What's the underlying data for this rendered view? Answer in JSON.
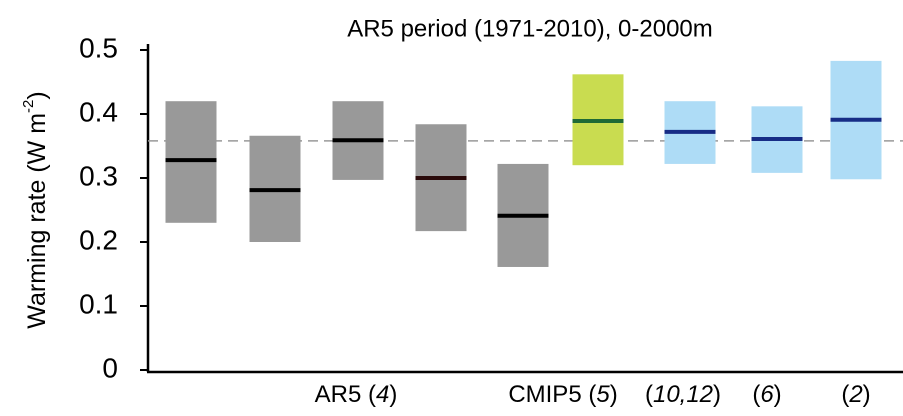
{
  "chart_data": {
    "type": "range",
    "title": "AR5 period (1971-2010), 0-2000m",
    "y_label": [
      "Warming rate (W m",
      "-2",
      ")"
    ],
    "ylim": [
      0,
      0.5
    ],
    "yticks": [
      0,
      0.1,
      0.2,
      0.3,
      0.4,
      0.5
    ],
    "reference_line": 0.358,
    "low": [
      0.23,
      0.2,
      0.297,
      0.217,
      0.161,
      0.32,
      0.322,
      0.308,
      0.298
    ],
    "high": [
      0.42,
      0.366,
      0.42,
      0.384,
      0.322,
      0.462,
      0.42,
      0.412,
      0.483
    ],
    "median": [
      0.328,
      0.281,
      0.359,
      0.3,
      0.241,
      0.389,
      0.372,
      0.361,
      0.391
    ],
    "box_colors": [
      "#999999",
      "#999999",
      "#999999",
      "#999999",
      "#999999",
      "#c9dc50",
      "#aedcf6",
      "#aedcf6",
      "#aedcf6"
    ],
    "median_colors": [
      "#000000",
      "#000000",
      "#000000",
      "#2a0b0b",
      "#000000",
      "#1f6a35",
      "#172d86",
      "#172d86",
      "#172d86"
    ],
    "x_labels": [
      [
        "AR5 (",
        "4",
        ")"
      ],
      [
        "CMIP5 (",
        "5",
        ")"
      ],
      [
        "(",
        "10,12",
        ")"
      ],
      [
        "(",
        "6",
        ")"
      ],
      [
        "(",
        "2",
        ")"
      ]
    ]
  }
}
